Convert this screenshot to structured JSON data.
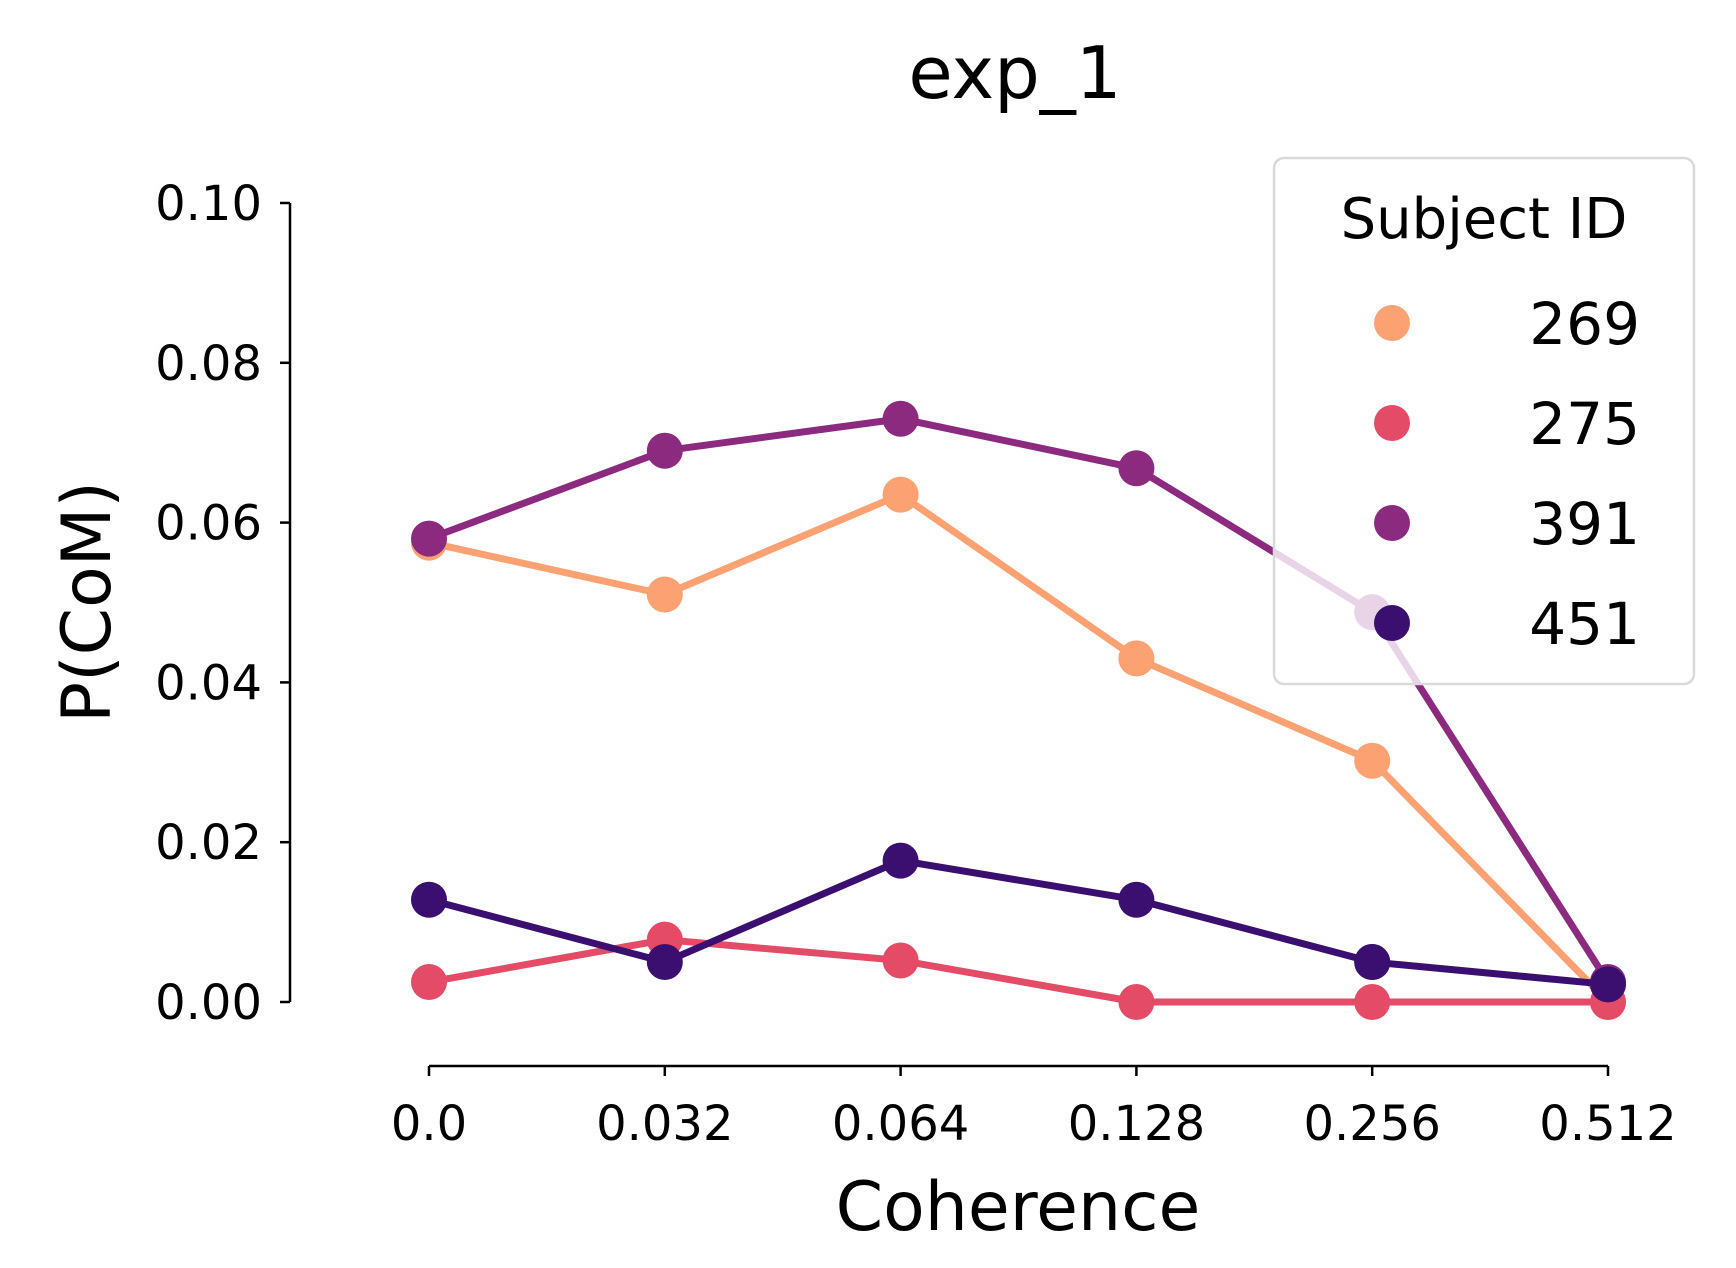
{
  "chart_data": {
    "type": "line",
    "title": "exp_1",
    "xlabel": "Coherence",
    "ylabel": "P(CoM)",
    "categories": [
      "0.0",
      "0.032",
      "0.064",
      "0.128",
      "0.256",
      "0.512"
    ],
    "yticks": [
      "0.00",
      "0.02",
      "0.04",
      "0.06",
      "0.08",
      "0.10"
    ],
    "ylim": [
      0,
      0.1
    ],
    "grid": false,
    "legend": {
      "title": "Subject ID",
      "placement": "top-right"
    },
    "series": [
      {
        "name": "269",
        "color": "#fca172",
        "values": [
          0.0575,
          0.051,
          0.0635,
          0.043,
          0.0302,
          0.0
        ]
      },
      {
        "name": "275",
        "color": "#e34b67",
        "values": [
          0.0025,
          0.0078,
          0.0052,
          0.0,
          0.0,
          0.0
        ]
      },
      {
        "name": "391",
        "color": "#8c2a80",
        "values": [
          0.058,
          0.069,
          0.073,
          0.0668,
          0.0488,
          0.0025
        ]
      },
      {
        "name": "451",
        "color": "#3a0f70",
        "values": [
          0.0128,
          0.005,
          0.0177,
          0.0128,
          0.005,
          0.0022
        ]
      }
    ]
  }
}
